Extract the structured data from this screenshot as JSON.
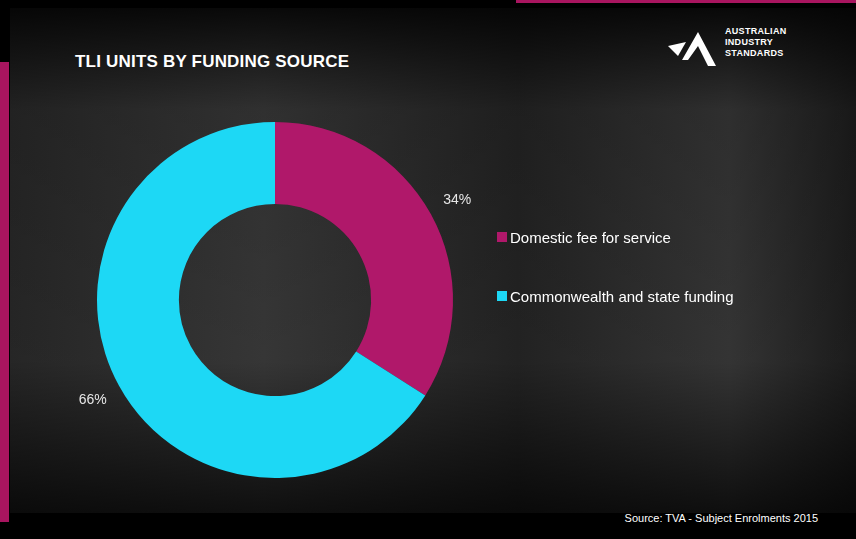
{
  "chart_data": {
    "type": "doughnut",
    "title": "TLI UNITS BY FUNDING SOURCE",
    "categories": [
      "Domestic fee for service",
      "Commonwealth and state funding"
    ],
    "values": [
      34,
      66
    ],
    "value_labels": [
      "34%",
      "66%"
    ],
    "colors": [
      "#b0186a",
      "#1dd8f5"
    ],
    "data_labels": true,
    "legend": "right"
  },
  "logo": [
    "AUSTRALIAN",
    "INDUSTRY",
    "STANDARDS"
  ],
  "source": "Source: TVA - Subject Enrolments 2015"
}
